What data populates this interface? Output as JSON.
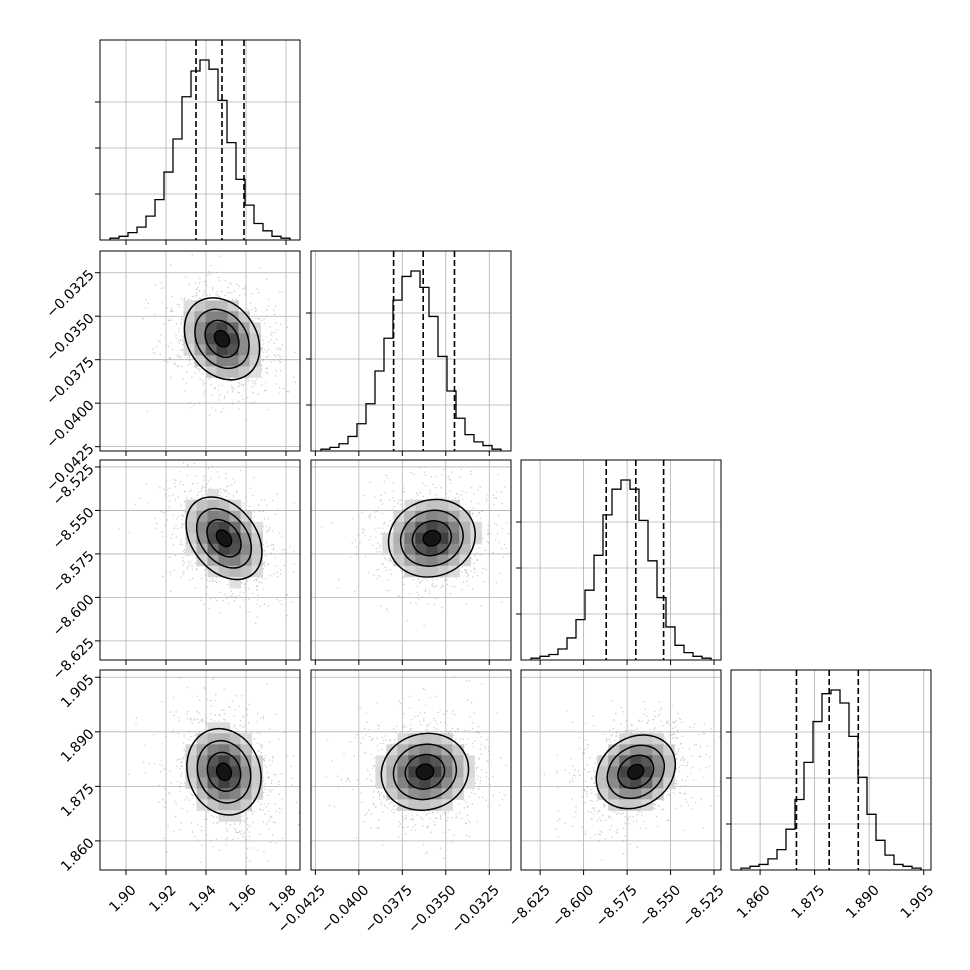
{
  "chart_data": {
    "type": "corner",
    "grid": true,
    "parameters": [
      {
        "quantiles": [
          1.935,
          1.948,
          1.959
        ],
        "hist": [
          1,
          2,
          4,
          7,
          13,
          22,
          37,
          55,
          78,
          92,
          98,
          93,
          76,
          53,
          33,
          19,
          9,
          5,
          2,
          1
        ]
      },
      {
        "quantiles": [
          -0.038,
          -0.0363,
          -0.0345
        ],
        "hist": [
          1,
          2,
          4,
          8,
          15,
          26,
          44,
          62,
          83,
          96,
          99,
          90,
          74,
          52,
          33,
          18,
          9,
          5,
          3,
          1
        ]
      },
      {
        "quantiles": [
          -8.587,
          -8.57,
          -8.554
        ],
        "hist": [
          1,
          2,
          3,
          6,
          12,
          22,
          38,
          57,
          79,
          93,
          98,
          93,
          76,
          54,
          34,
          18,
          8,
          4,
          2,
          1
        ]
      },
      {
        "quantiles": [
          1.87,
          1.879,
          1.887
        ],
        "hist": [
          1,
          2,
          3,
          6,
          11,
          22,
          38,
          58,
          80,
          95,
          97,
          90,
          72,
          50,
          30,
          16,
          8,
          3,
          2,
          1
        ]
      }
    ],
    "pairs": [
      {
        "row": 1,
        "col": 0,
        "mean": [
          1.948,
          -0.0363
        ]
      },
      {
        "row": 2,
        "col": 0,
        "mean": [
          1.949,
          -8.566
        ]
      },
      {
        "row": 2,
        "col": 1,
        "mean": [
          -0.0358,
          -8.566
        ]
      },
      {
        "row": 3,
        "col": 0,
        "mean": [
          1.949,
          1.879
        ]
      },
      {
        "row": 3,
        "col": 1,
        "mean": [
          -0.0362,
          1.879
        ]
      },
      {
        "row": 3,
        "col": 2,
        "mean": [
          -8.57,
          1.879
        ]
      }
    ],
    "x_axis_ticks": [
      {
        "values": [
          1.9,
          1.92,
          1.94,
          1.96,
          1.98
        ],
        "labels": [
          "1.90",
          "1.92",
          "1.94",
          "1.96",
          "1.98"
        ]
      },
      {
        "values": [
          -0.0425,
          -0.04,
          -0.0375,
          -0.035,
          -0.0325
        ],
        "labels": [
          "−0.0425",
          "−0.0400",
          "−0.0375",
          "−0.0350",
          "−0.0325"
        ]
      },
      {
        "values": [
          -8.625,
          -8.6,
          -8.575,
          -8.55,
          -8.525
        ],
        "labels": [
          "−8.625",
          "−8.600",
          "−8.575",
          "−8.550",
          "−8.525"
        ]
      },
      {
        "values": [
          1.86,
          1.875,
          1.89,
          1.905
        ],
        "labels": [
          "1.860",
          "1.875",
          "1.890",
          "1.905"
        ]
      }
    ],
    "y_axis_ticks": [
      null,
      {
        "values": [
          -0.0325,
          -0.035,
          -0.0375,
          -0.04,
          -0.0425
        ],
        "labels": [
          "−0.0325",
          "−0.0350",
          "−0.0375",
          "−0.0400",
          "−0.0425"
        ]
      },
      {
        "values": [
          -8.525,
          -8.55,
          -8.575,
          -8.6,
          -8.625
        ],
        "labels": [
          "−8.525",
          "−8.550",
          "−8.575",
          "−8.600",
          "−8.625"
        ]
      },
      {
        "values": [
          1.905,
          1.89,
          1.875,
          1.86
        ],
        "labels": [
          "1.905",
          "1.890",
          "1.875",
          "1.860"
        ]
      }
    ],
    "axis_ranges": [
      [
        1.887,
        1.987
      ],
      [
        -0.04275,
        -0.03125
      ],
      [
        -8.636,
        -8.521
      ],
      [
        1.852,
        1.907
      ]
    ]
  }
}
